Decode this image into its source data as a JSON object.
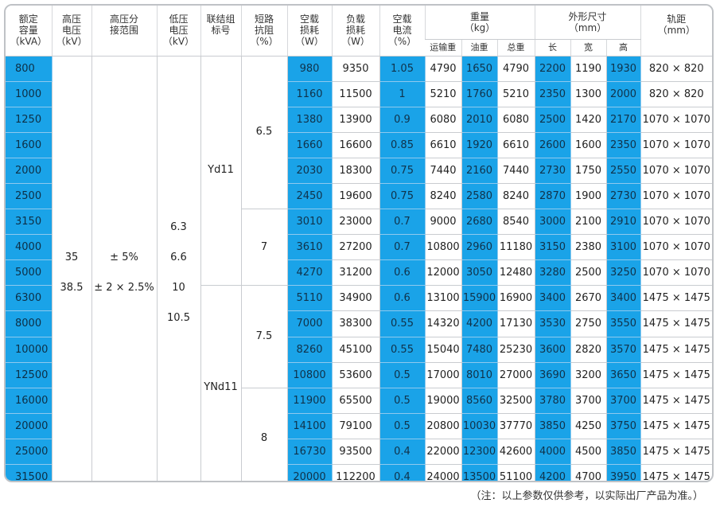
{
  "headers": {
    "capacity": [
      "额定",
      "容量",
      "（kVA）"
    ],
    "hv": [
      "高压",
      "电压",
      "（kV）"
    ],
    "tap": [
      "高压分",
      "接范围"
    ],
    "lv": [
      "低压",
      "电压",
      "（kV）"
    ],
    "group": [
      "联结组",
      "标号"
    ],
    "impedance": [
      "短路",
      "抗阻",
      "（%）"
    ],
    "noload_loss": [
      "空载",
      "损耗",
      "（W）"
    ],
    "load_loss": [
      "负载",
      "损耗",
      "（W）"
    ],
    "noload_current": [
      "空载",
      "电流",
      "（%）"
    ],
    "weight": [
      "重量",
      "（kg）"
    ],
    "weight_sub": [
      "运输重",
      "油重",
      "总重"
    ],
    "dimensions": [
      "外形尺寸",
      "（mm）"
    ],
    "dimensions_sub": [
      "长",
      "宽",
      "高"
    ],
    "gauge": [
      "轨距",
      "（mm）"
    ]
  },
  "merged": {
    "hv": [
      "35",
      "38.5"
    ],
    "tap": [
      "± 5%",
      "± 2 × 2.5%"
    ],
    "lv": [
      "6.3",
      "6.6",
      "10",
      "10.5"
    ],
    "group_1": "Yd11",
    "group_2": "YNd11",
    "imp_1": "6.5",
    "imp_2": "7",
    "imp_3": "7.5",
    "imp_4": "8"
  },
  "rows": [
    {
      "cap": "800",
      "nl": "980",
      "ll": "9350",
      "nc": "1.05",
      "tw": "4790",
      "ow": "1650",
      "gw": "4790",
      "l": "2200",
      "w": "1190",
      "h": "1930",
      "g": "820 × 820"
    },
    {
      "cap": "1000",
      "nl": "1160",
      "ll": "11500",
      "nc": "1",
      "tw": "5210",
      "ow": "1760",
      "gw": "5210",
      "l": "2350",
      "w": "1300",
      "h": "2000",
      "g": "820 × 820"
    },
    {
      "cap": "1250",
      "nl": "1380",
      "ll": "13900",
      "nc": "0.9",
      "tw": "6080",
      "ow": "2010",
      "gw": "6080",
      "l": "2500",
      "w": "1420",
      "h": "2170",
      "g": "1070 × 1070"
    },
    {
      "cap": "1600",
      "nl": "1660",
      "ll": "16600",
      "nc": "0.85",
      "tw": "6610",
      "ow": "1920",
      "gw": "6610",
      "l": "2600",
      "w": "1600",
      "h": "2350",
      "g": "1070 × 1070"
    },
    {
      "cap": "2000",
      "nl": "2030",
      "ll": "18300",
      "nc": "0.75",
      "tw": "7440",
      "ow": "2160",
      "gw": "7440",
      "l": "2730",
      "w": "1750",
      "h": "2550",
      "g": "1070 × 1070"
    },
    {
      "cap": "2500",
      "nl": "2450",
      "ll": "19600",
      "nc": "0.75",
      "tw": "8240",
      "ow": "2580",
      "gw": "8240",
      "l": "2870",
      "w": "1900",
      "h": "2730",
      "g": "1070 × 1070"
    },
    {
      "cap": "3150",
      "nl": "3010",
      "ll": "23000",
      "nc": "0.7",
      "tw": "9000",
      "ow": "2680",
      "gw": "8540",
      "l": "3000",
      "w": "2100",
      "h": "2910",
      "g": "1070 × 1070"
    },
    {
      "cap": "4000",
      "nl": "3610",
      "ll": "27200",
      "nc": "0.7",
      "tw": "10800",
      "ow": "2960",
      "gw": "11180",
      "l": "3150",
      "w": "2380",
      "h": "3100",
      "g": "1070 × 1070"
    },
    {
      "cap": "5000",
      "nl": "4270",
      "ll": "31200",
      "nc": "0.6",
      "tw": "12000",
      "ow": "3050",
      "gw": "12480",
      "l": "3280",
      "w": "2500",
      "h": "3250",
      "g": "1070 × 1070"
    },
    {
      "cap": "6300",
      "nl": "5110",
      "ll": "34900",
      "nc": "0.6",
      "tw": "13100",
      "ow": "15900",
      "gw": "16900",
      "l": "3400",
      "w": "2670",
      "h": "3400",
      "g": "1475 × 1475"
    },
    {
      "cap": "8000",
      "nl": "7000",
      "ll": "38300",
      "nc": "0.55",
      "tw": "14320",
      "ow": "4200",
      "gw": "17130",
      "l": "3530",
      "w": "2750",
      "h": "3550",
      "g": "1475 × 1475"
    },
    {
      "cap": "10000",
      "nl": "8260",
      "ll": "45100",
      "nc": "0.55",
      "tw": "15040",
      "ow": "7480",
      "gw": "25230",
      "l": "3600",
      "w": "2820",
      "h": "3570",
      "g": "1475 × 1475"
    },
    {
      "cap": "12500",
      "nl": "10800",
      "ll": "53600",
      "nc": "0.5",
      "tw": "17000",
      "ow": "8010",
      "gw": "27000",
      "l": "3690",
      "w": "3200",
      "h": "3650",
      "g": "1475 × 1475"
    },
    {
      "cap": "16000",
      "nl": "11900",
      "ll": "65500",
      "nc": "0.5",
      "tw": "19000",
      "ow": "8560",
      "gw": "32500",
      "l": "3780",
      "w": "3700",
      "h": "3700",
      "g": "1475 × 1475"
    },
    {
      "cap": "20000",
      "nl": "14100",
      "ll": "79100",
      "nc": "0.5",
      "tw": "20800",
      "ow": "10030",
      "gw": "37770",
      "l": "3850",
      "w": "4250",
      "h": "3750",
      "g": "1475 × 1475"
    },
    {
      "cap": "25000",
      "nl": "16730",
      "ll": "93500",
      "nc": "0.4",
      "tw": "22000",
      "ow": "12300",
      "gw": "42600",
      "l": "4000",
      "w": "4500",
      "h": "3850",
      "g": "1475 × 1475"
    },
    {
      "cap": "31500",
      "nl": "20000",
      "ll": "112200",
      "nc": "0.4",
      "tw": "24000",
      "ow": "13500",
      "gw": "51100",
      "l": "4200",
      "w": "4700",
      "h": "3950",
      "g": "1475 × 1475"
    }
  ],
  "note": "（注：以上参数仅供参考，以实际出厂产品为准。）",
  "colors": {
    "highlight": "#1aa3e8",
    "border": "#c9ccd0"
  }
}
